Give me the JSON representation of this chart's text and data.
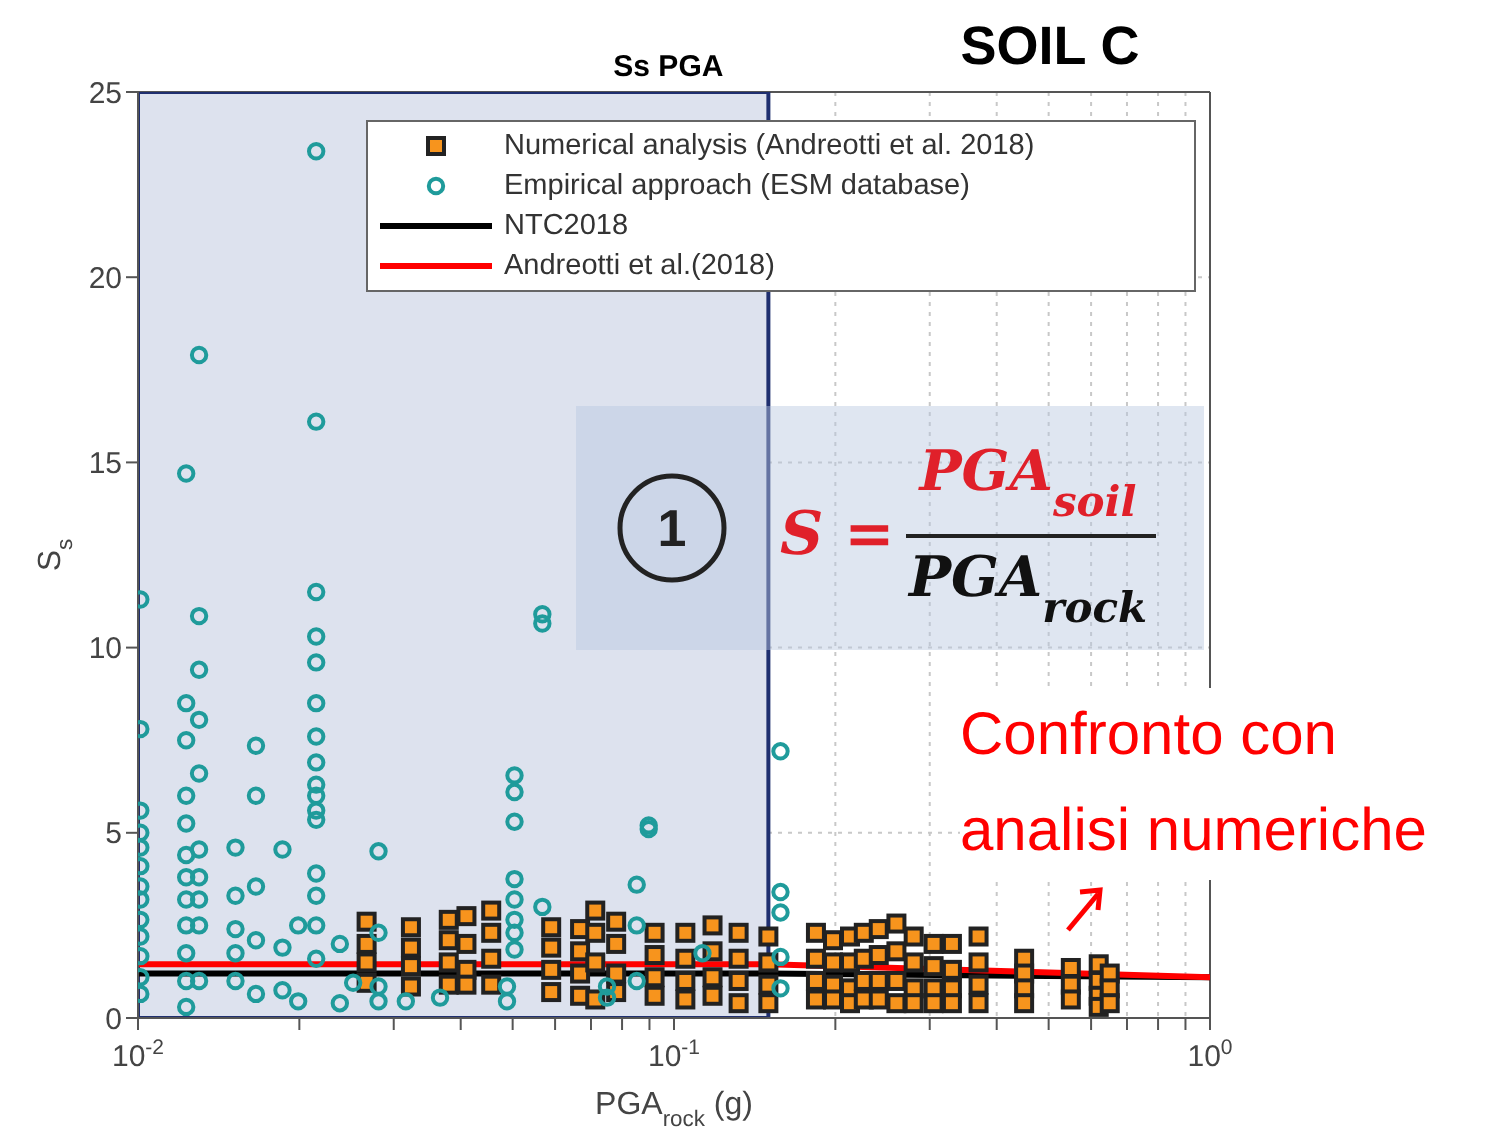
{
  "chart_data": {
    "type": "scatter",
    "title": "SOIL C",
    "xlabel": "PGA$_{rock}$ (g)",
    "ylabel": "S$_{s}$",
    "log": "x",
    "xlim": [
      0.01,
      1
    ],
    "ylim": [
      0,
      25
    ],
    "xticks": [
      {
        "value": 0.01,
        "label": "10$^{-2}$"
      },
      {
        "value": 0.02,
        "label": null
      },
      {
        "value": 0.03,
        "label": null
      },
      {
        "value": 0.04,
        "label": null
      },
      {
        "value": 0.05,
        "label": null
      },
      {
        "value": 0.06,
        "label": null
      },
      {
        "value": 0.07,
        "label": null
      },
      {
        "value": 0.08,
        "label": null
      },
      {
        "value": 0.09,
        "label": null
      },
      {
        "value": 0.1,
        "label": "10$^{-1}$"
      },
      {
        "value": 0.2,
        "label": null
      },
      {
        "value": 0.3,
        "label": null
      },
      {
        "value": 0.4,
        "label": null
      },
      {
        "value": 0.5,
        "label": null
      },
      {
        "value": 0.6,
        "label": null
      },
      {
        "value": 0.7,
        "label": null
      },
      {
        "value": 0.8,
        "label": null
      },
      {
        "value": 0.9,
        "label": null
      },
      {
        "value": 1,
        "label": "10$^{0}$"
      }
    ],
    "yticks": [
      0,
      5,
      10,
      15,
      20,
      25
    ],
    "grid": true,
    "legend": "top right",
    "bands": [
      {
        "axis": "x",
        "from": 0.01,
        "to": 0.15,
        "label": "Ss PGA",
        "color": "#dde2ee"
      }
    ],
    "series": [
      {
        "name": "Numerical analysis (Andreotti et al. 2018)",
        "marker": "square",
        "color": "#f7941d",
        "x": [
          0.0267,
          0.0267,
          0.0267,
          0.0267,
          0.0323,
          0.0323,
          0.0323,
          0.0323,
          0.038,
          0.038,
          0.038,
          0.038,
          0.041,
          0.041,
          0.041,
          0.041,
          0.0456,
          0.0456,
          0.0456,
          0.0456,
          0.059,
          0.059,
          0.059,
          0.059,
          0.0668,
          0.0668,
          0.0668,
          0.0668,
          0.0713,
          0.0713,
          0.0713,
          0.0713,
          0.078,
          0.078,
          0.078,
          0.078,
          0.092,
          0.092,
          0.092,
          0.092,
          0.105,
          0.105,
          0.105,
          0.105,
          0.118,
          0.118,
          0.118,
          0.118,
          0.132,
          0.132,
          0.132,
          0.132,
          0.15,
          0.15,
          0.15,
          0.15,
          0.184,
          0.184,
          0.184,
          0.184,
          0.198,
          0.198,
          0.198,
          0.198,
          0.213,
          0.213,
          0.213,
          0.213,
          0.226,
          0.226,
          0.226,
          0.226,
          0.241,
          0.241,
          0.241,
          0.241,
          0.26,
          0.26,
          0.26,
          0.26,
          0.28,
          0.28,
          0.28,
          0.28,
          0.305,
          0.305,
          0.305,
          0.305,
          0.33,
          0.33,
          0.33,
          0.33,
          0.37,
          0.37,
          0.37,
          0.37,
          0.45,
          0.45,
          0.45,
          0.45,
          0.55,
          0.55,
          0.55,
          0.62,
          0.62,
          0.62,
          0.62,
          0.65,
          0.65,
          0.65
        ],
        "values": [
          2.6,
          2.0,
          1.5,
          0.95,
          2.45,
          1.9,
          1.4,
          0.85,
          2.65,
          2.1,
          1.5,
          0.9,
          2.75,
          2.0,
          1.3,
          0.9,
          2.9,
          2.3,
          1.6,
          0.9,
          2.45,
          1.9,
          1.3,
          0.7,
          2.4,
          1.8,
          1.2,
          0.6,
          2.9,
          2.3,
          1.5,
          0.5,
          2.6,
          2.0,
          1.2,
          0.7,
          2.3,
          1.7,
          1.1,
          0.6,
          2.3,
          1.6,
          1.0,
          0.5,
          2.5,
          1.8,
          1.1,
          0.6,
          2.3,
          1.6,
          1.0,
          0.4,
          2.2,
          1.5,
          0.9,
          0.4,
          2.3,
          1.6,
          1.0,
          0.5,
          2.1,
          1.5,
          0.9,
          0.5,
          2.2,
          1.5,
          0.8,
          0.4,
          2.3,
          1.6,
          1.0,
          0.5,
          2.4,
          1.7,
          1.0,
          0.5,
          2.55,
          1.8,
          1.0,
          0.4,
          2.2,
          1.5,
          0.8,
          0.4,
          2.0,
          1.4,
          0.8,
          0.4,
          2.0,
          1.3,
          0.8,
          0.4,
          2.2,
          1.5,
          0.9,
          0.4,
          1.6,
          1.2,
          0.8,
          0.4,
          1.35,
          0.9,
          0.5,
          1.45,
          1.0,
          0.6,
          0.3,
          1.2,
          0.8,
          0.4
        ]
      },
      {
        "name": "Empirical approach (ESM database)",
        "marker": "circle",
        "color": "#1f9b9b",
        "x": [
          0.0101,
          0.0101,
          0.0101,
          0.0101,
          0.0101,
          0.0101,
          0.0101,
          0.0101,
          0.0101,
          0.0101,
          0.0101,
          0.0101,
          0.0101,
          0.0123,
          0.0123,
          0.0123,
          0.0123,
          0.0123,
          0.0123,
          0.0123,
          0.0123,
          0.0123,
          0.0123,
          0.0123,
          0.0123,
          0.013,
          0.013,
          0.013,
          0.013,
          0.013,
          0.013,
          0.013,
          0.013,
          0.013,
          0.013,
          0.0152,
          0.0152,
          0.0152,
          0.0152,
          0.0152,
          0.0166,
          0.0166,
          0.0166,
          0.0166,
          0.0166,
          0.0186,
          0.0186,
          0.0186,
          0.0199,
          0.0199,
          0.0215,
          0.0215,
          0.0215,
          0.0215,
          0.0215,
          0.0215,
          0.0215,
          0.0215,
          0.0215,
          0.0215,
          0.0215,
          0.0215,
          0.0215,
          0.0215,
          0.0215,
          0.0215,
          0.0238,
          0.0238,
          0.0252,
          0.0281,
          0.0281,
          0.0281,
          0.0281,
          0.0316,
          0.0366,
          0.0488,
          0.0488,
          0.0504,
          0.0504,
          0.0504,
          0.0504,
          0.0504,
          0.0504,
          0.0504,
          0.0504,
          0.0568,
          0.0568,
          0.0568,
          0.075,
          0.075,
          0.0852,
          0.0852,
          0.0852,
          0.0897,
          0.0897,
          0.113,
          0.158,
          0.158,
          0.158,
          0.158,
          0.158
        ],
        "values": [
          11.3,
          7.8,
          5.6,
          5.0,
          4.6,
          4.1,
          3.55,
          3.2,
          2.65,
          2.2,
          1.67,
          1.1,
          0.65,
          14.7,
          8.5,
          7.5,
          6.0,
          5.25,
          4.4,
          3.8,
          3.2,
          2.5,
          1.75,
          1.0,
          0.3,
          17.9,
          10.85,
          9.4,
          8.05,
          6.6,
          4.55,
          3.8,
          3.2,
          2.5,
          1.0,
          4.6,
          3.3,
          2.4,
          1.75,
          1.0,
          7.35,
          6.0,
          3.55,
          2.1,
          0.65,
          4.55,
          1.9,
          0.75,
          2.5,
          0.45,
          23.4,
          16.1,
          11.5,
          10.3,
          9.6,
          8.5,
          7.6,
          6.9,
          6.3,
          6.0,
          5.6,
          5.35,
          3.9,
          3.3,
          2.5,
          1.6,
          2.0,
          0.4,
          0.95,
          4.5,
          2.3,
          0.85,
          0.45,
          0.45,
          0.55,
          0.85,
          0.45,
          6.55,
          6.1,
          5.3,
          3.75,
          3.2,
          2.65,
          2.3,
          1.85,
          10.9,
          10.65,
          3.0,
          0.85,
          0.55,
          3.6,
          2.5,
          1.0,
          5.2,
          5.1,
          1.75,
          7.2,
          3.4,
          2.85,
          1.65,
          0.8
        ]
      },
      {
        "name": "NTC2018",
        "type": "line",
        "marker": "none",
        "color": "#000000",
        "x": [
          0.01,
          0.15,
          1
        ],
        "values": [
          1.2,
          1.2,
          1.1
        ]
      },
      {
        "name": "Andreotti et al.(2018)",
        "type": "line",
        "marker": "none",
        "color": "#ff0000",
        "x": [
          0.01,
          0.15,
          1
        ],
        "values": [
          1.45,
          1.45,
          1.1
        ]
      }
    ],
    "annotations": [
      "1",
      "S =",
      "PGA$_{soil}$",
      "PGA$_{rock}$",
      "Confronto con analisi numeriche"
    ]
  }
}
